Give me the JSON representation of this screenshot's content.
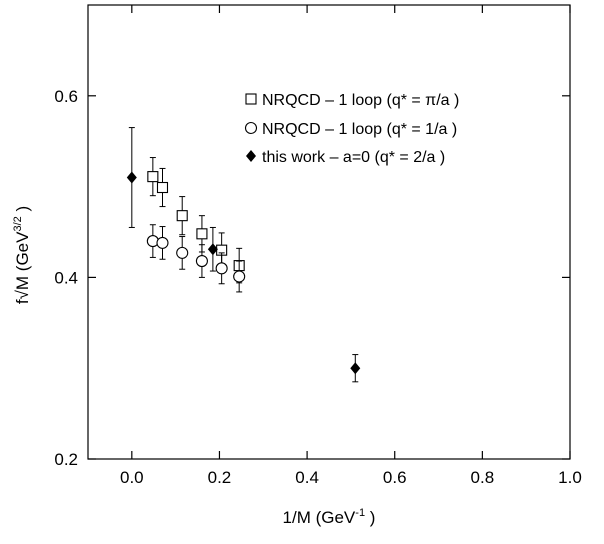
{
  "chart_data": {
    "type": "scatter",
    "xlabel": "1/M (GeV",
    "xlabel_sup": "-1",
    "xlabel_close": " )",
    "ylabel": "f√M (GeV",
    "ylabel_sup": "3/2",
    "ylabel_close": " )",
    "xlim": [
      -0.1,
      1.0
    ],
    "ylim": [
      0.2,
      0.7
    ],
    "x_ticks": [
      0.0,
      0.2,
      0.4,
      0.6,
      0.8,
      1.0
    ],
    "x_tick_labels": [
      "0.0",
      "0.2",
      "0.4",
      "0.6",
      "0.8",
      "1.0"
    ],
    "y_ticks": [
      0.2,
      0.4,
      0.6
    ],
    "y_tick_labels": [
      "0.2",
      "0.4",
      "0.6"
    ],
    "grid": false,
    "legend_position": "top-right",
    "series": [
      {
        "name": "NRQCD – 1 loop (q* = π/a )",
        "marker": "open-square",
        "points": [
          {
            "x": 0.048,
            "y": 0.511,
            "err": 0.021
          },
          {
            "x": 0.07,
            "y": 0.499,
            "err": 0.021
          },
          {
            "x": 0.115,
            "y": 0.468,
            "err": 0.021
          },
          {
            "x": 0.16,
            "y": 0.448,
            "err": 0.02
          },
          {
            "x": 0.205,
            "y": 0.43,
            "err": 0.019
          },
          {
            "x": 0.245,
            "y": 0.413,
            "err": 0.019
          }
        ]
      },
      {
        "name": "NRQCD – 1 loop (q* = 1/a )",
        "marker": "open-circle",
        "points": [
          {
            "x": 0.048,
            "y": 0.44,
            "err": 0.018
          },
          {
            "x": 0.07,
            "y": 0.438,
            "err": 0.018
          },
          {
            "x": 0.115,
            "y": 0.427,
            "err": 0.018
          },
          {
            "x": 0.16,
            "y": 0.418,
            "err": 0.018
          },
          {
            "x": 0.205,
            "y": 0.41,
            "err": 0.017
          },
          {
            "x": 0.245,
            "y": 0.401,
            "err": 0.017
          }
        ]
      },
      {
        "name": "this work – a=0 (q* = 2/a )",
        "marker": "filled-diamond",
        "points": [
          {
            "x": 0.0,
            "y": 0.51,
            "err": 0.055
          },
          {
            "x": 0.185,
            "y": 0.431,
            "err": 0.024
          },
          {
            "x": 0.51,
            "y": 0.3,
            "err": 0.015
          }
        ]
      }
    ]
  }
}
